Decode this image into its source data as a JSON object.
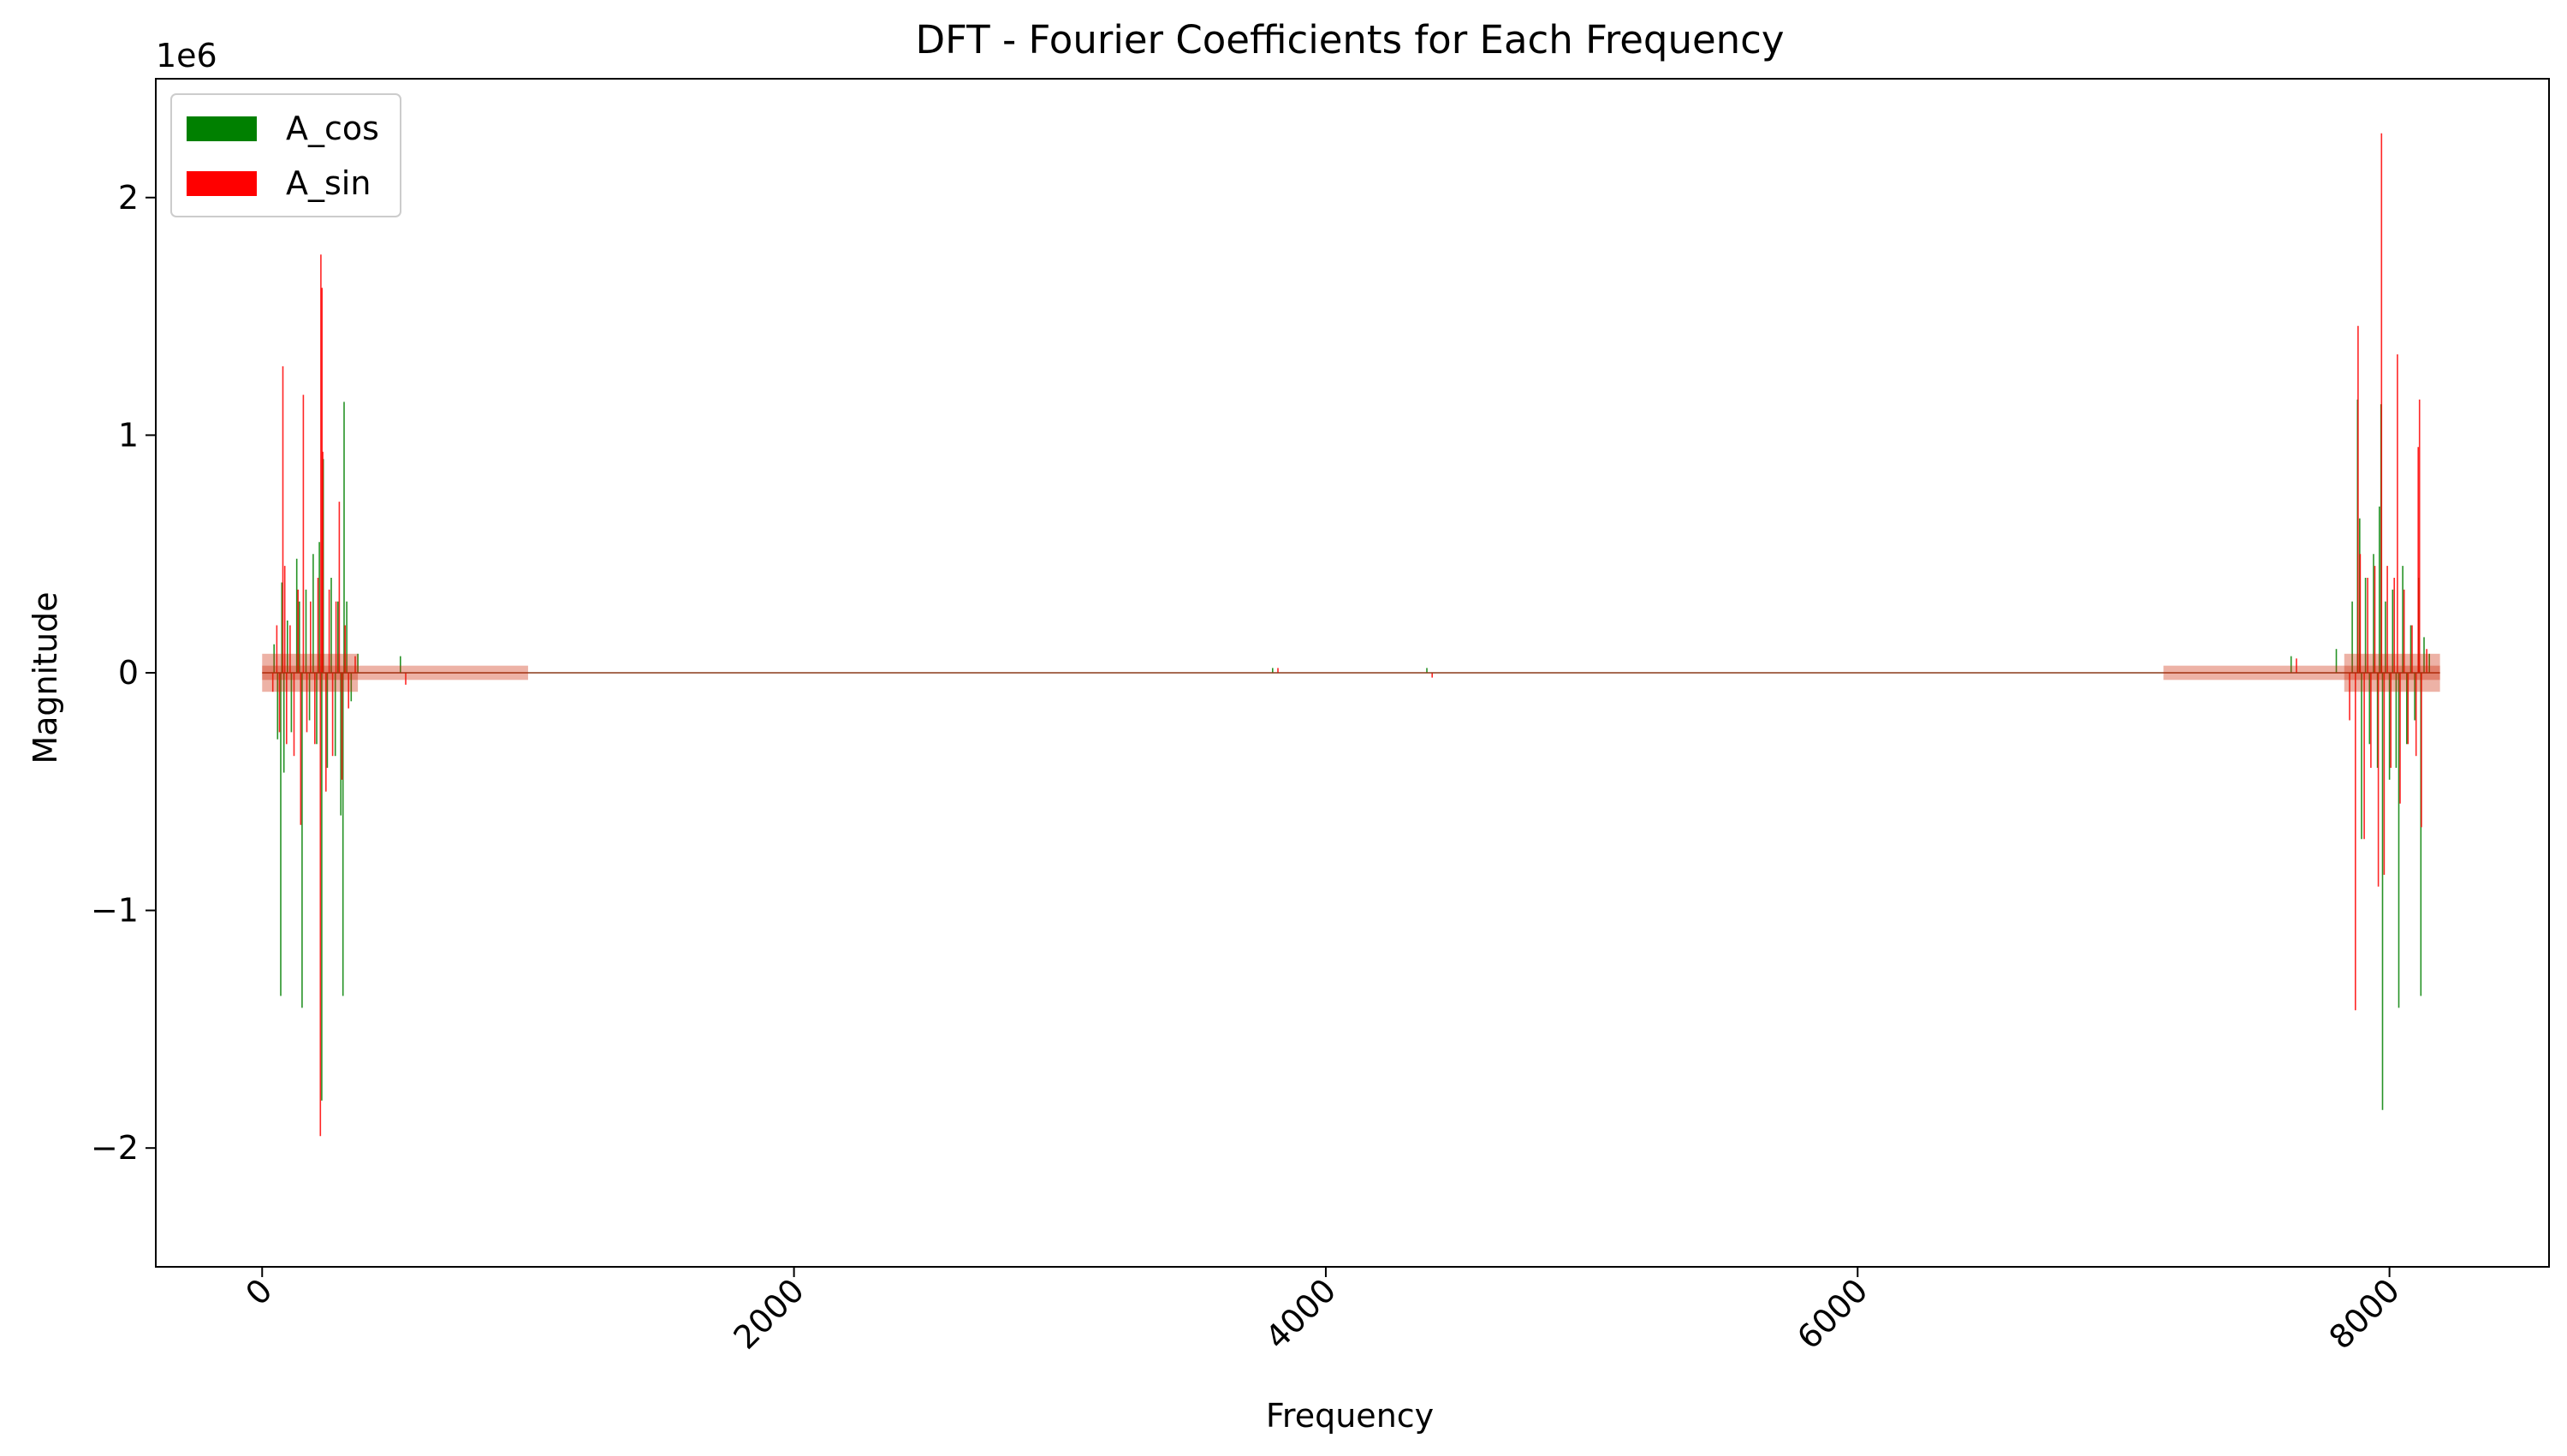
{
  "chart_data": {
    "type": "bar",
    "title": "DFT - Fourier Coefficients for Each Frequency",
    "xlabel": "Frequency",
    "ylabel": "Magnitude",
    "y_offset_label": "1e6",
    "xlim": [
      -400,
      8600
    ],
    "ylim": [
      -2.5,
      2.5
    ],
    "y_scale_factor": 1000000,
    "x_ticks": [
      0,
      2000,
      4000,
      6000,
      8000
    ],
    "x_tick_labels": [
      "0",
      "2000",
      "4000",
      "6000",
      "8000"
    ],
    "x_tick_rotation_deg": 45,
    "y_ticks": [
      -2,
      -1,
      0,
      1,
      2
    ],
    "y_tick_labels": [
      "−2",
      "−1",
      "0",
      "1",
      "2"
    ],
    "grid": false,
    "legend_position": "top-left",
    "series": [
      {
        "name": "A_cos",
        "color": "#008000",
        "spikes": [
          {
            "x": 45,
            "y": 0.12
          },
          {
            "x": 58,
            "y": -0.28
          },
          {
            "x": 70,
            "y": -1.36
          },
          {
            "x": 74,
            "y": 0.38
          },
          {
            "x": 82,
            "y": -0.42
          },
          {
            "x": 95,
            "y": 0.22
          },
          {
            "x": 110,
            "y": -0.25
          },
          {
            "x": 130,
            "y": 0.48
          },
          {
            "x": 140,
            "y": 0.3
          },
          {
            "x": 150,
            "y": -1.41
          },
          {
            "x": 165,
            "y": 0.35
          },
          {
            "x": 178,
            "y": -0.2
          },
          {
            "x": 192,
            "y": 0.5
          },
          {
            "x": 205,
            "y": -0.3
          },
          {
            "x": 215,
            "y": 0.55
          },
          {
            "x": 224,
            "y": -1.8
          },
          {
            "x": 230,
            "y": 0.9
          },
          {
            "x": 245,
            "y": -0.4
          },
          {
            "x": 260,
            "y": 0.4
          },
          {
            "x": 275,
            "y": -0.35
          },
          {
            "x": 285,
            "y": 0.3
          },
          {
            "x": 296,
            "y": -0.6
          },
          {
            "x": 304,
            "y": -1.36
          },
          {
            "x": 308,
            "y": 1.14
          },
          {
            "x": 318,
            "y": 0.3
          },
          {
            "x": 335,
            "y": -0.12
          },
          {
            "x": 360,
            "y": 0.08
          },
          {
            "x": 520,
            "y": 0.07
          },
          {
            "x": 3800,
            "y": 0.02
          },
          {
            "x": 4380,
            "y": 0.02
          },
          {
            "x": 7630,
            "y": 0.07
          },
          {
            "x": 7800,
            "y": 0.1
          },
          {
            "x": 7860,
            "y": 0.3
          },
          {
            "x": 7880,
            "y": 1.15
          },
          {
            "x": 7888,
            "y": 0.65
          },
          {
            "x": 7895,
            "y": -0.7
          },
          {
            "x": 7910,
            "y": 0.4
          },
          {
            "x": 7925,
            "y": -0.3
          },
          {
            "x": 7940,
            "y": 0.5
          },
          {
            "x": 7955,
            "y": -0.4
          },
          {
            "x": 7962,
            "y": 0.7
          },
          {
            "x": 7968,
            "y": 1.13
          },
          {
            "x": 7974,
            "y": -1.84
          },
          {
            "x": 7985,
            "y": 0.3
          },
          {
            "x": 8000,
            "y": -0.45
          },
          {
            "x": 8012,
            "y": 0.35
          },
          {
            "x": 8025,
            "y": -0.4
          },
          {
            "x": 8035,
            "y": -1.41
          },
          {
            "x": 8050,
            "y": 0.45
          },
          {
            "x": 8065,
            "y": -0.3
          },
          {
            "x": 8080,
            "y": 0.2
          },
          {
            "x": 8095,
            "y": -0.2
          },
          {
            "x": 8110,
            "y": 0.4
          },
          {
            "x": 8118,
            "y": -1.36
          },
          {
            "x": 8130,
            "y": 0.15
          },
          {
            "x": 8150,
            "y": 0.08
          }
        ]
      },
      {
        "name": "A_sin",
        "color": "#ff0000",
        "spikes": [
          {
            "x": 40,
            "y": -0.08
          },
          {
            "x": 55,
            "y": 0.2
          },
          {
            "x": 65,
            "y": -0.25
          },
          {
            "x": 78,
            "y": 1.29
          },
          {
            "x": 85,
            "y": 0.45
          },
          {
            "x": 92,
            "y": -0.3
          },
          {
            "x": 105,
            "y": 0.2
          },
          {
            "x": 120,
            "y": -0.35
          },
          {
            "x": 135,
            "y": 0.35
          },
          {
            "x": 145,
            "y": -0.64
          },
          {
            "x": 155,
            "y": 1.17
          },
          {
            "x": 168,
            "y": -0.25
          },
          {
            "x": 182,
            "y": 0.3
          },
          {
            "x": 198,
            "y": -0.3
          },
          {
            "x": 210,
            "y": 0.4
          },
          {
            "x": 219,
            "y": -1.95
          },
          {
            "x": 221,
            "y": 1.76
          },
          {
            "x": 225,
            "y": 1.62
          },
          {
            "x": 228,
            "y": 0.93
          },
          {
            "x": 240,
            "y": -0.5
          },
          {
            "x": 252,
            "y": 0.35
          },
          {
            "x": 265,
            "y": -0.35
          },
          {
            "x": 278,
            "y": 0.3
          },
          {
            "x": 290,
            "y": 0.72
          },
          {
            "x": 300,
            "y": -0.45
          },
          {
            "x": 312,
            "y": 0.2
          },
          {
            "x": 325,
            "y": -0.15
          },
          {
            "x": 350,
            "y": 0.07
          },
          {
            "x": 540,
            "y": -0.05
          },
          {
            "x": 3820,
            "y": 0.02
          },
          {
            "x": 4400,
            "y": -0.02
          },
          {
            "x": 7650,
            "y": 0.06
          },
          {
            "x": 7850,
            "y": -0.2
          },
          {
            "x": 7872,
            "y": -1.42
          },
          {
            "x": 7882,
            "y": 1.46
          },
          {
            "x": 7890,
            "y": 0.5
          },
          {
            "x": 7905,
            "y": -0.7
          },
          {
            "x": 7918,
            "y": 0.4
          },
          {
            "x": 7930,
            "y": -0.4
          },
          {
            "x": 7945,
            "y": 0.45
          },
          {
            "x": 7958,
            "y": -0.9
          },
          {
            "x": 7970,
            "y": 2.27
          },
          {
            "x": 7980,
            "y": -0.85
          },
          {
            "x": 7992,
            "y": 0.45
          },
          {
            "x": 8005,
            "y": -0.4
          },
          {
            "x": 8018,
            "y": 0.4
          },
          {
            "x": 8030,
            "y": 1.34
          },
          {
            "x": 8040,
            "y": -0.55
          },
          {
            "x": 8055,
            "y": 0.35
          },
          {
            "x": 8070,
            "y": -0.3
          },
          {
            "x": 8085,
            "y": 0.2
          },
          {
            "x": 8100,
            "y": -0.35
          },
          {
            "x": 8108,
            "y": 0.95
          },
          {
            "x": 8113,
            "y": 1.15
          },
          {
            "x": 8120,
            "y": -0.65
          },
          {
            "x": 8140,
            "y": 0.1
          }
        ]
      }
    ]
  }
}
